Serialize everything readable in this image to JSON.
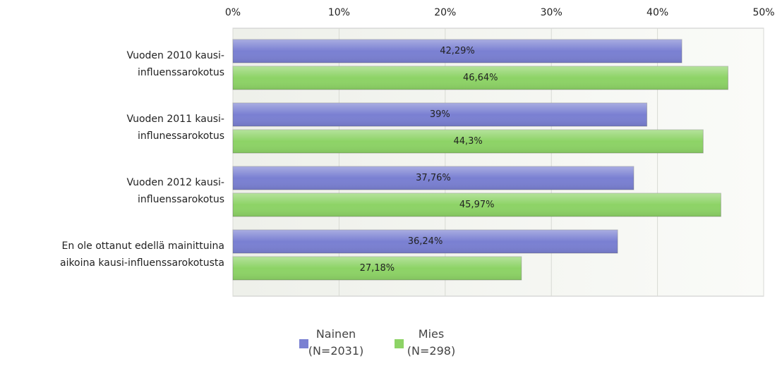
{
  "chart_data": {
    "type": "hbar",
    "categories": [
      "Vuoden 2010 kausi-\ninfluenssarokotus",
      "Vuoden 2011 kausi-\ninflunessarokotus",
      "Vuoden 2012 kausi-\ninfluenssarokotus",
      "En ole ottanut edellä mainittuina\naikoina kausi-influenssarokotusta"
    ],
    "series": [
      {
        "name": "Nainen\n(N=2031)",
        "color": "#7a80d2",
        "values": [
          42.29,
          39,
          37.76,
          36.24
        ],
        "value_labels": [
          "42,29%",
          "39%",
          "37,76%",
          "36,24%"
        ]
      },
      {
        "name": "Mies\n(N=298)",
        "color": "#8dd366",
        "values": [
          46.64,
          44.3,
          45.97,
          27.18
        ],
        "value_labels": [
          "46,64%",
          "44,3%",
          "45,97%",
          "27,18%"
        ]
      }
    ],
    "xlim": [
      0,
      50
    ],
    "xticks": [
      {
        "value": 0,
        "label": "0%"
      },
      {
        "value": 10,
        "label": "10%"
      },
      {
        "value": 20,
        "label": "20%"
      },
      {
        "value": 30,
        "label": "30%"
      },
      {
        "value": 40,
        "label": "40%"
      },
      {
        "value": 50,
        "label": "50%"
      }
    ],
    "grid": true,
    "legend": "bottom"
  }
}
